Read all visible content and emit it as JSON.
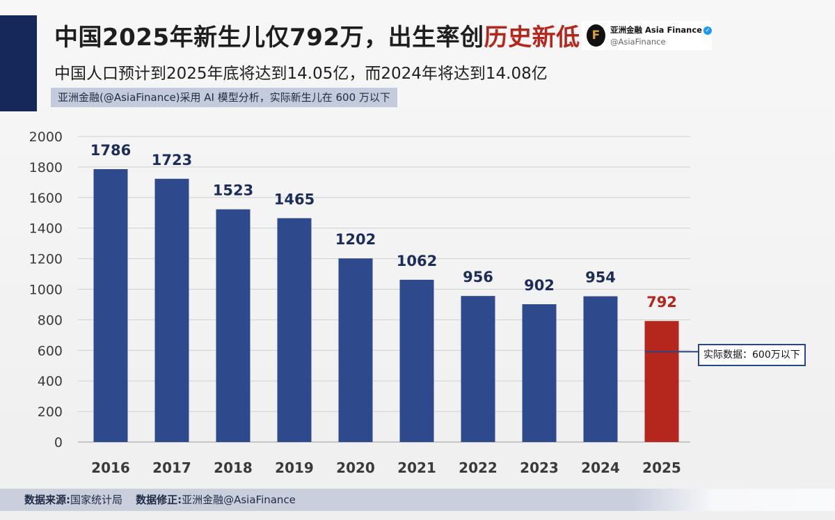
{
  "header": {
    "title_main": "中国2025年新生儿仅792万，出生率创",
    "title_highlight": "历史新低",
    "subtitle": "中国人口预计到2025年底将达到14.05亿，而2024年将达到14.08亿",
    "note": "亚洲金融(@AsiaFinance)采用 AI 模型分析，实际新生儿在 600 万以下"
  },
  "brand": {
    "logo_glyph": "F",
    "name": "亚洲金融 Asia Finance",
    "handle": "@AsiaFinance",
    "verified_icon": "verified-badge-icon"
  },
  "callout": {
    "text": "实际数据：600万以下",
    "value": 600
  },
  "footer": {
    "source_label": "数据来源:",
    "source_value": "国家统计局",
    "correction_label": "数据修正:",
    "correction_value": "亚洲金融@AsiaFinance"
  },
  "colors": {
    "bar": "#2f4a8c",
    "highlight_bar": "#b5261d",
    "label": "#1c2d59",
    "highlight_label": "#b5261d",
    "grid": "#cfcfcf",
    "accent": "#14285a"
  },
  "chart_data": {
    "type": "bar",
    "categories": [
      "2016",
      "2017",
      "2018",
      "2019",
      "2020",
      "2021",
      "2022",
      "2023",
      "2024",
      "2025"
    ],
    "values": [
      1786,
      1723,
      1523,
      1465,
      1202,
      1062,
      956,
      902,
      954,
      792
    ],
    "highlight_category": "2025",
    "ylim": [
      0,
      2000
    ],
    "yticks": [
      0,
      200,
      400,
      600,
      800,
      1000,
      1200,
      1400,
      1600,
      1800,
      2000
    ],
    "grid": true,
    "title": "",
    "xlabel": "",
    "ylabel": ""
  }
}
